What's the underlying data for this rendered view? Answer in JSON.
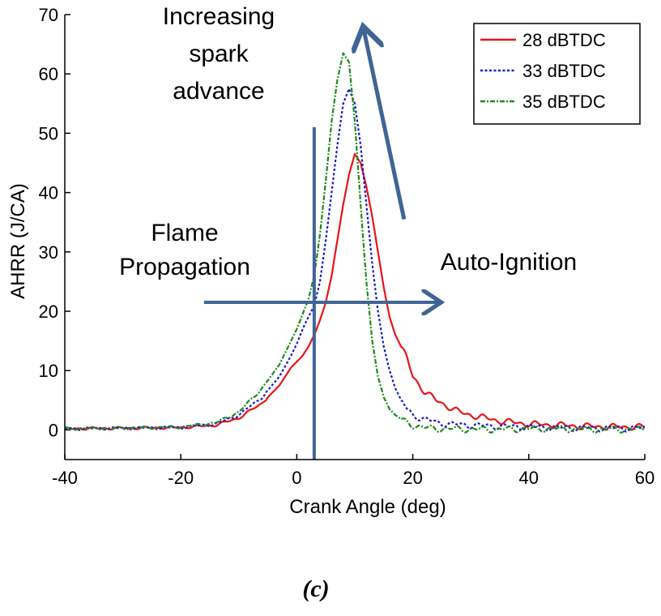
{
  "chart_data": {
    "type": "line",
    "title": "",
    "xlabel": "Crank Angle (deg)",
    "ylabel": "AHRR (J/CA)",
    "xlim": [
      -40,
      60
    ],
    "ylim": [
      -5,
      70
    ],
    "xticks": [
      -40,
      -20,
      0,
      20,
      40,
      60
    ],
    "yticks": [
      0,
      10,
      20,
      30,
      40,
      50,
      60,
      70
    ],
    "grid": false,
    "legend_position": "top-right",
    "series": [
      {
        "name": "28 dBTDC",
        "color": "#e8141a",
        "dash": "solid",
        "x": [
          -40,
          -30,
          -20,
          -14,
          -10,
          -6,
          -3,
          -1,
          0,
          1,
          2,
          3,
          4,
          5,
          6,
          7,
          8,
          9,
          10,
          11,
          12,
          13,
          14,
          15,
          16,
          17,
          18,
          19,
          20,
          22,
          24,
          26,
          28,
          30,
          35,
          40,
          45,
          50,
          55,
          60
        ],
        "y": [
          0.2,
          0.3,
          0.4,
          0.8,
          2.0,
          4.5,
          7.5,
          10.5,
          11.5,
          12.5,
          14.0,
          16.0,
          18.5,
          21.5,
          26.0,
          32.0,
          38.0,
          43.0,
          46.5,
          45.0,
          41.0,
          36.0,
          30.0,
          24.0,
          19.0,
          16.0,
          14.0,
          12.0,
          9.0,
          6.5,
          5.0,
          4.0,
          3.0,
          2.5,
          1.5,
          1.0,
          0.8,
          0.6,
          0.5,
          0.5
        ]
      },
      {
        "name": "33 dBTDC",
        "color": "#1a1acc",
        "dash": "dotted",
        "x": [
          -40,
          -30,
          -20,
          -14,
          -10,
          -6,
          -3,
          -1,
          0,
          1,
          2,
          3,
          4,
          5,
          6,
          7,
          8,
          9,
          10,
          11,
          12,
          13,
          14,
          15,
          16,
          17,
          18,
          19,
          20,
          22,
          24,
          26,
          30,
          35,
          40,
          45,
          50,
          55,
          60
        ],
        "y": [
          0.2,
          0.3,
          0.4,
          1.0,
          2.5,
          5.5,
          9.0,
          12.5,
          14.5,
          17.0,
          19.0,
          21.0,
          25.0,
          32.0,
          40.0,
          48.0,
          55.0,
          57.5,
          55.0,
          48.0,
          38.0,
          28.0,
          20.0,
          14.0,
          10.0,
          7.0,
          5.0,
          3.5,
          2.5,
          1.8,
          1.3,
          1.0,
          0.8,
          0.6,
          0.5,
          0.4,
          0.3,
          0.3,
          0.3
        ]
      },
      {
        "name": "35 dBTDC",
        "color": "#1e8a1e",
        "dash": "dashdot",
        "x": [
          -40,
          -30,
          -20,
          -14,
          -10,
          -6,
          -3,
          -1,
          0,
          1,
          2,
          3,
          4,
          5,
          6,
          7,
          8,
          9,
          10,
          11,
          12,
          13,
          14,
          15,
          16,
          17,
          18,
          19,
          20,
          22,
          24,
          26,
          30,
          35,
          40,
          45,
          50,
          55,
          60
        ],
        "y": [
          0.2,
          0.3,
          0.5,
          1.2,
          3.0,
          7.0,
          11.0,
          15.0,
          17.0,
          19.5,
          22.0,
          26.0,
          33.0,
          42.0,
          52.0,
          59.0,
          63.5,
          62.0,
          52.0,
          38.0,
          25.0,
          15.0,
          9.0,
          5.5,
          3.5,
          2.5,
          1.8,
          1.2,
          0.8,
          0.4,
          0.2,
          0.2,
          0.1,
          0.1,
          0.2,
          0.2,
          0.1,
          0.1,
          0.1
        ]
      }
    ],
    "annotations": {
      "spark": [
        "Increasing",
        "spark",
        "advance"
      ],
      "flame": [
        "Flame",
        "Propagation"
      ],
      "auto": "Auto-Ignition"
    },
    "annotation_color": "#3f6595",
    "vertical_line_x": 3,
    "horizontal_arrow": {
      "x_start": -16,
      "x_end": 26,
      "y": 21.5
    },
    "diagonal_arrow": {
      "x_start": 18.5,
      "y_start": 35.5,
      "x_end": 11.5,
      "y_end": 68.5
    }
  },
  "caption": "(c)"
}
